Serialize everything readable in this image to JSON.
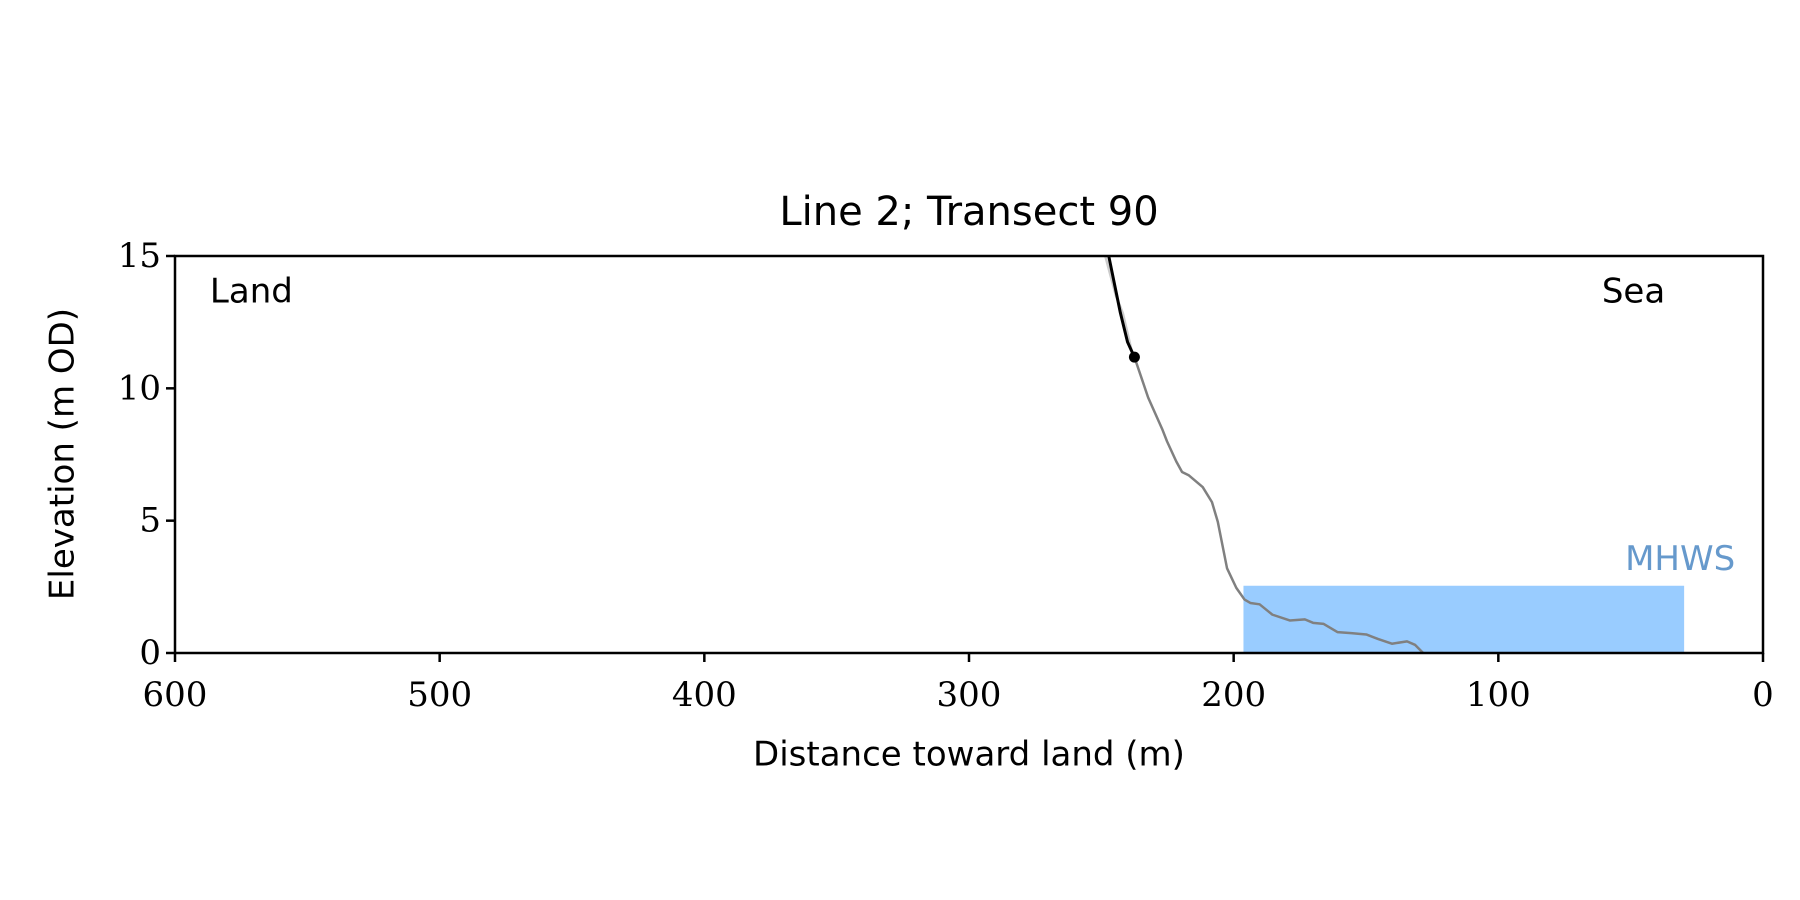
{
  "chart_data": {
    "type": "line",
    "title": "Line 2; Transect 90",
    "xlabel": "Distance toward land (m)",
    "ylabel": "Elevation (m OD)",
    "xlim": [
      600,
      0
    ],
    "ylim": [
      0,
      15
    ],
    "xticks": [
      600,
      500,
      400,
      300,
      200,
      100,
      0
    ],
    "yticks": [
      0,
      5,
      10,
      15
    ],
    "grid": false,
    "area": {
      "x": [
        196.3,
        29.8
      ],
      "values": [
        2.54,
        2.54
      ],
      "color": "#99ccff"
    },
    "series": [
      {
        "color": "#cccccc",
        "x": [
          248.5,
          244.5,
          241.9,
          238.5
        ],
        "values": [
          15,
          13.5,
          12.85,
          11.4
        ]
      },
      {
        "color": "#808080",
        "x": [
          237.5,
          232.3,
          227,
          225.2,
          221.7,
          219.5,
          216.9,
          211.7,
          208.2,
          206,
          202.5,
          199,
          195.9,
          193.7,
          190.2,
          185.4,
          178.8,
          173.1,
          170,
          166,
          160.8,
          155.6,
          149.9,
          145.5,
          140.2,
          134.5,
          131.5,
          128.4
        ],
        "values": [
          11.18,
          9.65,
          8.46,
          8.0,
          7.24,
          6.84,
          6.71,
          6.27,
          5.7,
          4.96,
          3.2,
          2.46,
          2.02,
          1.89,
          1.84,
          1.45,
          1.23,
          1.27,
          1.14,
          1.1,
          0.79,
          0.75,
          0.7,
          0.53,
          0.35,
          0.44,
          0.31,
          0
        ]
      },
      {
        "color": "#000000",
        "x": [
          247.2,
          242.8,
          240.1,
          237.5
        ],
        "values": [
          15,
          12.85,
          11.75,
          11.18
        ]
      }
    ],
    "point": {
      "x": 237.5,
      "y": 11.18,
      "color": "#000000"
    },
    "annotations": [
      {
        "text": "Land",
        "x": 586.8,
        "y": 13.6,
        "color": "#000000"
      },
      {
        "text": "Sea",
        "x": 60.9,
        "y": 13.6,
        "color": "#000000"
      },
      {
        "text": "MHWS",
        "x": 52.1,
        "y": 3.5,
        "color": "#6699cc"
      }
    ]
  }
}
